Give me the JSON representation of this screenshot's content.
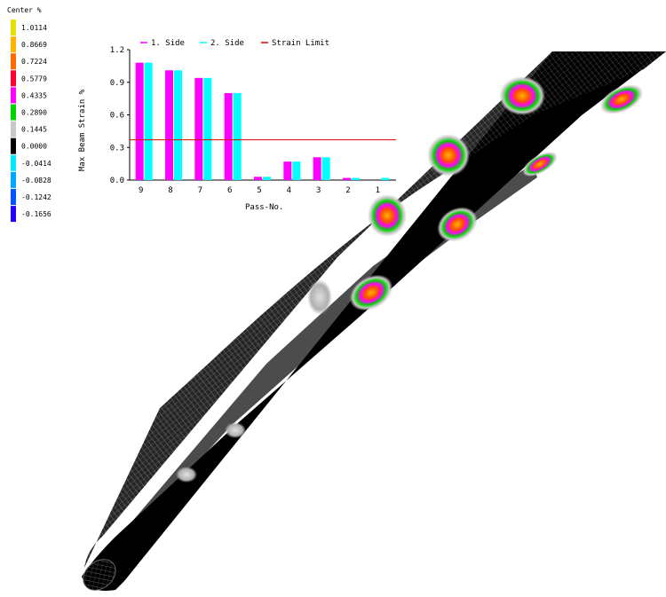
{
  "color_legend": {
    "title": "Center %",
    "entries": [
      {
        "label": "1.0114",
        "color": "#e8e000"
      },
      {
        "label": "0.8669",
        "color": "#ffb400"
      },
      {
        "label": "0.7224",
        "color": "#ff6a00"
      },
      {
        "label": "0.5779",
        "color": "#ff0030"
      },
      {
        "label": "0.4335",
        "color": "#ff00ff"
      },
      {
        "label": "0.2890",
        "color": "#00d400"
      },
      {
        "label": "0.1445",
        "color": "#c8c8c8"
      },
      {
        "label": "0.0000",
        "color": "#000000"
      },
      {
        "label": "-0.0414",
        "color": "#00e8ff"
      },
      {
        "label": "-0.0828",
        "color": "#00a8ff"
      },
      {
        "label": "-0.1242",
        "color": "#0055ff"
      },
      {
        "label": "-0.1656",
        "color": "#2000ff"
      }
    ]
  },
  "chart_data": {
    "type": "bar",
    "title": "",
    "xlabel": "Pass-No.",
    "ylabel": "Max Beam Strain %",
    "categories": [
      "9",
      "8",
      "7",
      "6",
      "5",
      "4",
      "3",
      "2",
      "1"
    ],
    "series": [
      {
        "name": "1. Side",
        "color": "#ff00ff",
        "values": [
          1.08,
          1.01,
          0.94,
          0.8,
          0.03,
          0.17,
          0.21,
          0.02,
          0.0
        ]
      },
      {
        "name": "2. Side",
        "color": "#00ffff",
        "values": [
          1.08,
          1.01,
          0.94,
          0.8,
          0.03,
          0.17,
          0.21,
          0.02,
          0.02
        ]
      }
    ],
    "reference_line": {
      "name": "Strain Limit",
      "value": 0.37,
      "color": "#e00000"
    },
    "ylim": [
      0,
      1.2
    ],
    "yticks": [
      "0.0",
      "0.3",
      "0.6",
      "0.9",
      "1.2"
    ],
    "grid": false,
    "legend_position": "top"
  },
  "model": {
    "description_hidden": true,
    "colors": {
      "body": "#000000",
      "mesh": "#d8d8d8"
    }
  }
}
